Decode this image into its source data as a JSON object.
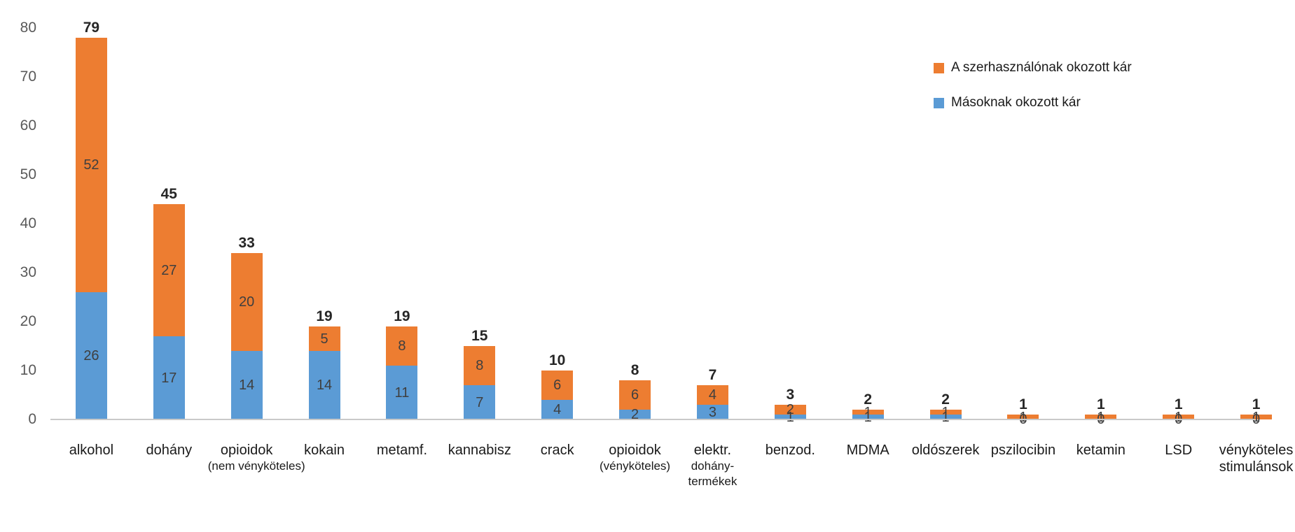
{
  "chart_data": {
    "type": "stacked-bar",
    "title": "",
    "xlabel": "",
    "ylabel": "",
    "ylim": [
      0,
      80
    ],
    "yticks": [
      0,
      10,
      20,
      30,
      40,
      50,
      60,
      70,
      80
    ],
    "grid": false,
    "legend_position": "top-right",
    "categories": [
      {
        "lines": [
          "alkohol"
        ],
        "small_from": -1
      },
      {
        "lines": [
          "dohány"
        ],
        "small_from": -1
      },
      {
        "lines": [
          "opioidok",
          "(nem vényköteles)"
        ],
        "small_from": 1
      },
      {
        "lines": [
          "kokain"
        ],
        "small_from": -1
      },
      {
        "lines": [
          "metamf."
        ],
        "small_from": -1
      },
      {
        "lines": [
          "kannabisz"
        ],
        "small_from": -1
      },
      {
        "lines": [
          "crack"
        ],
        "small_from": -1
      },
      {
        "lines": [
          "opioidok",
          "(vényköteles)"
        ],
        "small_from": 1
      },
      {
        "lines": [
          "elektr.",
          "dohány-",
          "termékek"
        ],
        "small_from": 1
      },
      {
        "lines": [
          "benzod."
        ],
        "small_from": -1
      },
      {
        "lines": [
          "MDMA"
        ],
        "small_from": -1
      },
      {
        "lines": [
          "oldószerek"
        ],
        "small_from": -1
      },
      {
        "lines": [
          "pszilocibin"
        ],
        "small_from": -1
      },
      {
        "lines": [
          "ketamin"
        ],
        "small_from": -1
      },
      {
        "lines": [
          "LSD"
        ],
        "small_from": -1
      },
      {
        "lines": [
          "vényköteles",
          "stimulánsok"
        ],
        "small_from": -1
      }
    ],
    "series": [
      {
        "name": "Másoknak okozott kár",
        "color": "#5B9BD5",
        "values": [
          26,
          17,
          14,
          14,
          11,
          7,
          4,
          2,
          3,
          1,
          1,
          1,
          0,
          0,
          0,
          0
        ]
      },
      {
        "name": "A szerhasználónak okozott kár",
        "color": "#ED7D31",
        "values": [
          52,
          27,
          20,
          5,
          8,
          8,
          6,
          6,
          4,
          2,
          1,
          1,
          1,
          1,
          1,
          1
        ]
      }
    ],
    "totals": [
      79,
      45,
      33,
      19,
      19,
      15,
      10,
      8,
      7,
      3,
      2,
      2,
      1,
      1,
      1,
      1
    ]
  },
  "colors": {
    "axis_line": "#c9c9c9",
    "tick_label": "#595959",
    "segment_label": "#3f3f3f",
    "total_label": "#262626",
    "category_label": "#1a1a1a"
  }
}
